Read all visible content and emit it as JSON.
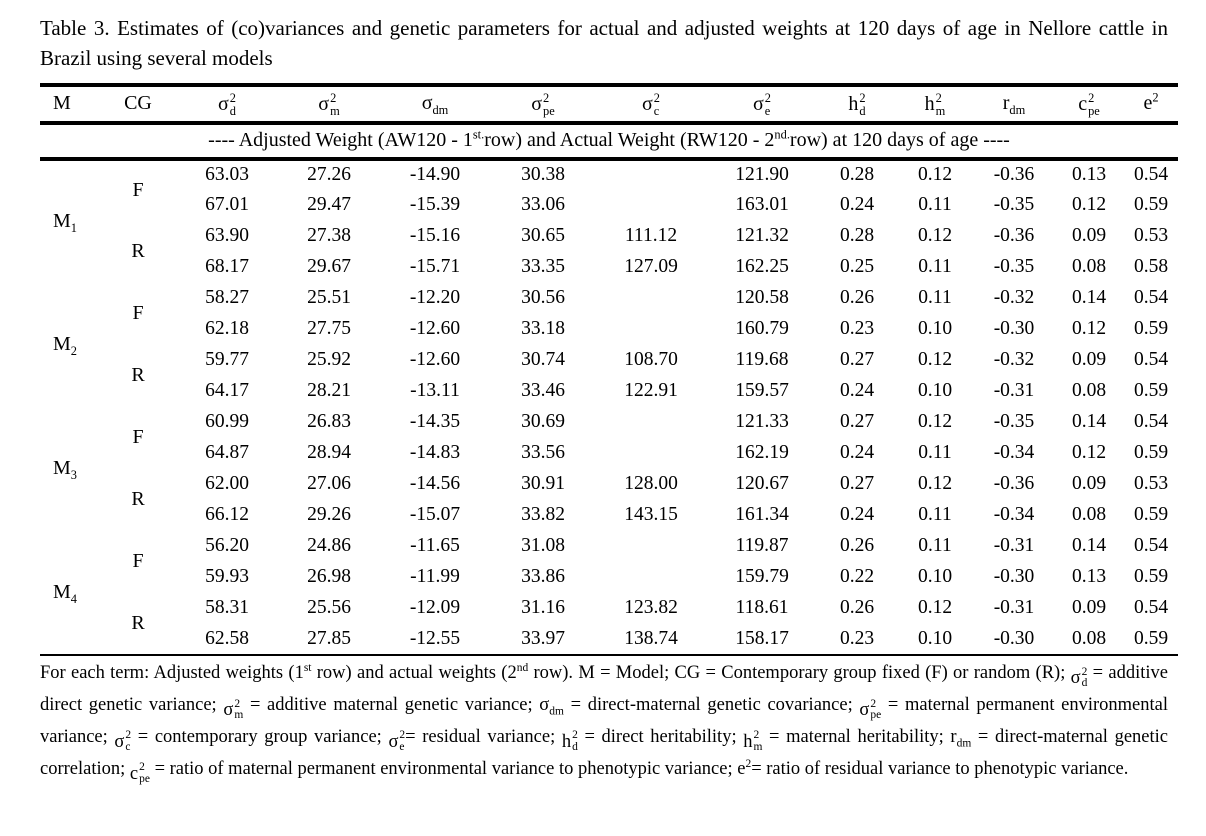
{
  "title": "Table 3. Estimates of (co)variances and genetic parameters for actual and adjusted weights at 120 days of age in Nellore cattle in Brazil using several models",
  "table": {
    "columns": [
      {
        "key": "model",
        "label": [
          {
            "text": "M"
          }
        ]
      },
      {
        "key": "cg",
        "label": [
          {
            "text": "CG"
          }
        ]
      },
      {
        "key": "sigma2-d",
        "label": [
          {
            "stack": {
              "base": "σ",
              "sup": "2",
              "sub": "d"
            }
          }
        ]
      },
      {
        "key": "sigma2-m",
        "label": [
          {
            "stack": {
              "base": "σ",
              "sup": "2",
              "sub": "m"
            }
          }
        ]
      },
      {
        "key": "sigma-dm",
        "label": [
          {
            "text": "σ"
          },
          {
            "sub": "dm"
          }
        ]
      },
      {
        "key": "sigma2-pe",
        "label": [
          {
            "stack": {
              "base": "σ",
              "sup": "2",
              "sub": "pe"
            }
          }
        ]
      },
      {
        "key": "sigma2-c",
        "label": [
          {
            "stack": {
              "base": "σ",
              "sup": "2",
              "sub": "c"
            }
          }
        ]
      },
      {
        "key": "sigma2-e",
        "label": [
          {
            "stack": {
              "base": "σ",
              "sup": "2",
              "sub": "e"
            }
          }
        ]
      },
      {
        "key": "h2-d",
        "label": [
          {
            "stack": {
              "base": "h",
              "sup": "2",
              "sub": "d"
            }
          }
        ]
      },
      {
        "key": "h2-m",
        "label": [
          {
            "stack": {
              "base": "h",
              "sup": "2",
              "sub": "m"
            }
          }
        ]
      },
      {
        "key": "r-dm",
        "label": [
          {
            "text": "r"
          },
          {
            "sub": "dm"
          }
        ]
      },
      {
        "key": "c2-pe",
        "label": [
          {
            "stack": {
              "base": "c",
              "sup": "2",
              "sub": "pe"
            }
          }
        ]
      },
      {
        "key": "e2",
        "label": [
          {
            "text": "e"
          },
          {
            "sup": "2"
          }
        ]
      }
    ],
    "span_note": [
      {
        "text": "---- Adjusted Weight (AW120 - 1"
      },
      {
        "sup": "st."
      },
      {
        "text": "row) and Actual Weight (RW120 - 2"
      },
      {
        "sup": "nd."
      },
      {
        "text": "row) at 120 days of age ----"
      }
    ],
    "models": [
      {
        "label": [
          {
            "text": "M"
          },
          {
            "sub": "1"
          }
        ],
        "groups": [
          {
            "cg": "F",
            "rows": [
              [
                "63.03",
                "27.26",
                "-14.90",
                "30.38",
                "",
                "121.90",
                "0.28",
                "0.12",
                "-0.36",
                "0.13",
                "0.54"
              ],
              [
                "67.01",
                "29.47",
                "-15.39",
                "33.06",
                "",
                "163.01",
                "0.24",
                "0.11",
                "-0.35",
                "0.12",
                "0.59"
              ]
            ]
          },
          {
            "cg": "R",
            "rows": [
              [
                "63.90",
                "27.38",
                "-15.16",
                "30.65",
                "111.12",
                "121.32",
                "0.28",
                "0.12",
                "-0.36",
                "0.09",
                "0.53"
              ],
              [
                "68.17",
                "29.67",
                "-15.71",
                "33.35",
                "127.09",
                "162.25",
                "0.25",
                "0.11",
                "-0.35",
                "0.08",
                "0.58"
              ]
            ]
          }
        ]
      },
      {
        "label": [
          {
            "text": "M"
          },
          {
            "sub": "2"
          }
        ],
        "groups": [
          {
            "cg": "F",
            "rows": [
              [
                "58.27",
                "25.51",
                "-12.20",
                "30.56",
                "",
                "120.58",
                "0.26",
                "0.11",
                "-0.32",
                "0.14",
                "0.54"
              ],
              [
                "62.18",
                "27.75",
                "-12.60",
                "33.18",
                "",
                "160.79",
                "0.23",
                "0.10",
                "-0.30",
                "0.12",
                "0.59"
              ]
            ]
          },
          {
            "cg": "R",
            "rows": [
              [
                "59.77",
                "25.92",
                "-12.60",
                "30.74",
                "108.70",
                "119.68",
                "0.27",
                "0.12",
                "-0.32",
                "0.09",
                "0.54"
              ],
              [
                "64.17",
                "28.21",
                "-13.11",
                "33.46",
                "122.91",
                "159.57",
                "0.24",
                "0.10",
                "-0.31",
                "0.08",
                "0.59"
              ]
            ]
          }
        ]
      },
      {
        "label": [
          {
            "text": "M"
          },
          {
            "sub": "3"
          }
        ],
        "groups": [
          {
            "cg": "F",
            "rows": [
              [
                "60.99",
                "26.83",
                "-14.35",
                "30.69",
                "",
                "121.33",
                "0.27",
                "0.12",
                "-0.35",
                "0.14",
                "0.54"
              ],
              [
                "64.87",
                "28.94",
                "-14.83",
                "33.56",
                "",
                "162.19",
                "0.24",
                "0.11",
                "-0.34",
                "0.12",
                "0.59"
              ]
            ]
          },
          {
            "cg": "R",
            "rows": [
              [
                "62.00",
                "27.06",
                "-14.56",
                "30.91",
                "128.00",
                "120.67",
                "0.27",
                "0.12",
                "-0.36",
                "0.09",
                "0.53"
              ],
              [
                "66.12",
                "29.26",
                "-15.07",
                "33.82",
                "143.15",
                "161.34",
                "0.24",
                "0.11",
                "-0.34",
                "0.08",
                "0.59"
              ]
            ]
          }
        ]
      },
      {
        "label": [
          {
            "text": "M"
          },
          {
            "sub": "4"
          }
        ],
        "groups": [
          {
            "cg": "F",
            "rows": [
              [
                "56.20",
                "24.86",
                "-11.65",
                "31.08",
                "",
                "119.87",
                "0.26",
                "0.11",
                "-0.31",
                "0.14",
                "0.54"
              ],
              [
                "59.93",
                "26.98",
                "-11.99",
                "33.86",
                "",
                "159.79",
                "0.22",
                "0.10",
                "-0.30",
                "0.13",
                "0.59"
              ]
            ]
          },
          {
            "cg": "R",
            "rows": [
              [
                "58.31",
                "25.56",
                "-12.09",
                "31.16",
                "123.82",
                "118.61",
                "0.26",
                "0.12",
                "-0.31",
                "0.09",
                "0.54"
              ],
              [
                "62.58",
                "27.85",
                "-12.55",
                "33.97",
                "138.74",
                "158.17",
                "0.23",
                "0.10",
                "-0.30",
                "0.08",
                "0.59"
              ]
            ]
          }
        ]
      }
    ]
  },
  "footnote": [
    {
      "text": "For each term: Adjusted weights (1"
    },
    {
      "sup": "st"
    },
    {
      "text": " row) and actual weights (2"
    },
    {
      "sup": "nd"
    },
    {
      "text": " row). M = Model; CG = Contemporary group fixed (F) or random (R); "
    },
    {
      "stack": {
        "base": "σ",
        "sup": "2",
        "sub": "d"
      }
    },
    {
      "text": " = additive direct genetic variance; "
    },
    {
      "stack": {
        "base": "σ",
        "sup": "2",
        "sub": "m"
      }
    },
    {
      "text": " = additive maternal genetic variance; "
    },
    {
      "text": "σ"
    },
    {
      "sub": "dm"
    },
    {
      "text": " = direct-maternal genetic covariance; "
    },
    {
      "stack": {
        "base": "σ",
        "sup": "2",
        "sub": "pe"
      }
    },
    {
      "text": " = maternal permanent environmental variance; "
    },
    {
      "stack": {
        "base": "σ",
        "sup": "2",
        "sub": "c"
      }
    },
    {
      "text": " = contemporary group variance; "
    },
    {
      "stack": {
        "base": "σ",
        "sup": "2",
        "sub": "e"
      }
    },
    {
      "text": "= residual variance; "
    },
    {
      "stack": {
        "base": "h",
        "sup": "2",
        "sub": "d"
      }
    },
    {
      "text": " = direct heritability; "
    },
    {
      "stack": {
        "base": "h",
        "sup": "2",
        "sub": "m"
      }
    },
    {
      "text": " = maternal heritability; "
    },
    {
      "text": "r"
    },
    {
      "sub": "dm"
    },
    {
      "text": " = direct-maternal genetic correlation; "
    },
    {
      "stack": {
        "base": "c",
        "sup": "2",
        "sub": "pe"
      }
    },
    {
      "text": " = ratio of maternal permanent environmental variance to phenotypic variance; "
    },
    {
      "text": "e"
    },
    {
      "sup": "2"
    },
    {
      "text": "= ratio of residual variance to phenotypic variance."
    }
  ]
}
